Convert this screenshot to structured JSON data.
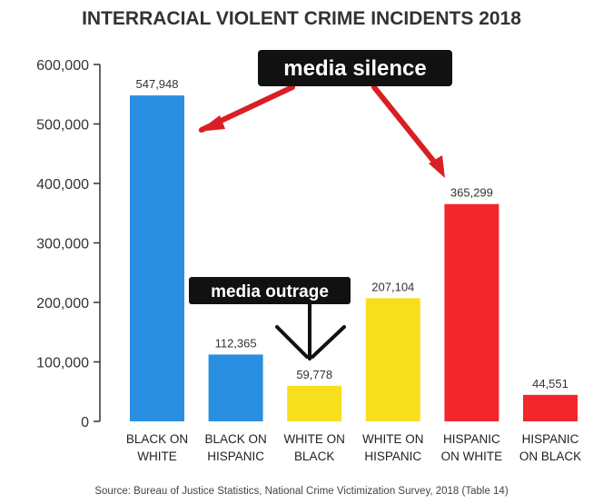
{
  "chart_data": {
    "type": "bar",
    "title": "INTERRACIAL VIOLENT CRIME INCIDENTS 2018",
    "categories": [
      [
        "BLACK ON",
        "WHITE"
      ],
      [
        "BLACK ON",
        "HISPANIC"
      ],
      [
        "WHITE ON",
        "BLACK"
      ],
      [
        "WHITE ON",
        "HISPANIC"
      ],
      [
        "HISPANIC",
        "ON WHITE"
      ],
      [
        "HISPANIC",
        "ON BLACK"
      ]
    ],
    "values": [
      547948,
      112365,
      59778,
      207104,
      365299,
      44551
    ],
    "data_labels": [
      "547,948",
      "112,365",
      "59,778",
      "207,104",
      "365,299",
      "44,551"
    ],
    "bar_colors": [
      "#2a8fe0",
      "#2a8fe0",
      "#f7df1e",
      "#f7df1e",
      "#f2262b",
      "#f2262b"
    ],
    "ylim": [
      0,
      600000
    ],
    "yticks": [
      0,
      100000,
      200000,
      300000,
      400000,
      500000,
      600000
    ],
    "ytick_labels": [
      "0",
      "100,000",
      "200,000",
      "300,000",
      "400,000",
      "500,000",
      "600,000"
    ],
    "xlabel": "",
    "ylabel": "",
    "grid": false,
    "source": "Source: Bureau of Justice Statistics, National Crime Victimization Survey, 2018 (Table 14)"
  },
  "annotations": {
    "media_silence": "media silence",
    "media_outrage": "media outrage"
  },
  "colors": {
    "arrow_red": "#d91f24",
    "callout_bg": "#111111",
    "axis": "#333333"
  }
}
